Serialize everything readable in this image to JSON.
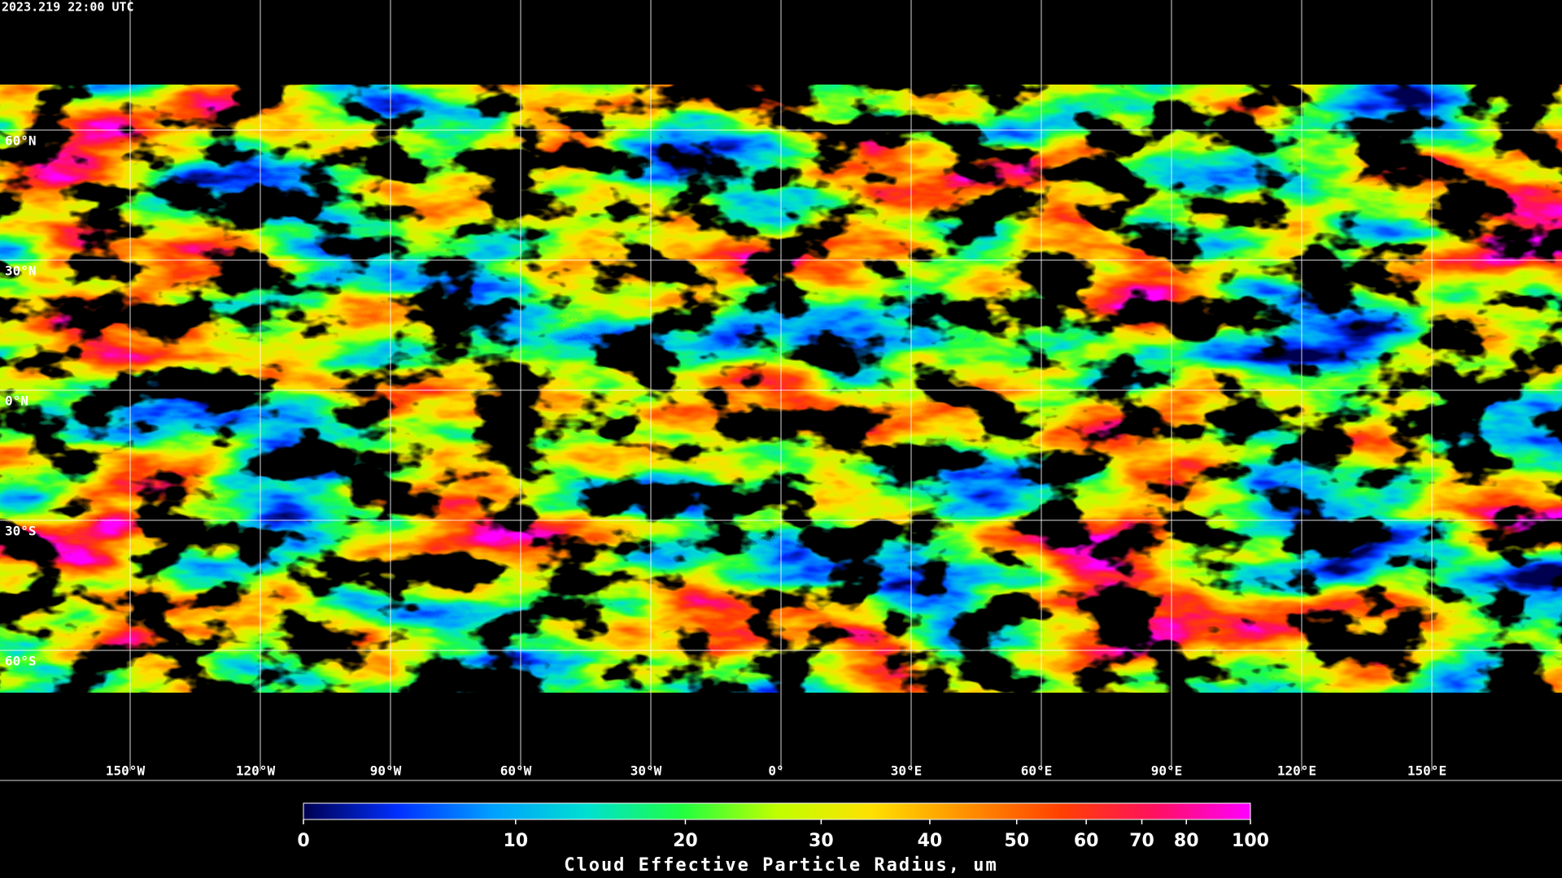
{
  "map": {
    "timestamp": "2023.219 22:00 UTC",
    "xlim": [
      -180,
      180
    ],
    "ylim": [
      -90,
      90
    ],
    "grid": true,
    "lon_ticks": [
      {
        "value": -150,
        "label": "150°W"
      },
      {
        "value": -120,
        "label": "120°W"
      },
      {
        "value": -90,
        "label": "90°W"
      },
      {
        "value": -60,
        "label": "60°W"
      },
      {
        "value": -30,
        "label": "30°W"
      },
      {
        "value": 0,
        "label": "0°"
      },
      {
        "value": 30,
        "label": "30°E"
      },
      {
        "value": 60,
        "label": "60°E"
      },
      {
        "value": 90,
        "label": "90°E"
      },
      {
        "value": 120,
        "label": "120°E"
      },
      {
        "value": 150,
        "label": "150°E"
      }
    ],
    "lat_ticks": [
      {
        "value": 60,
        "label": "60°N"
      },
      {
        "value": 30,
        "label": "30°N"
      },
      {
        "value": 0,
        "label": "0°N"
      },
      {
        "value": -30,
        "label": "30°S"
      },
      {
        "value": -60,
        "label": "60°S"
      }
    ]
  },
  "colorbar": {
    "label": "Cloud Effective Particle Radius, um",
    "lim": [
      0,
      100
    ],
    "ticks": [
      0,
      10,
      20,
      30,
      40,
      50,
      60,
      70,
      80,
      100
    ],
    "colors": [
      "#000050",
      "#0030ff",
      "#00a0ff",
      "#00e0d0",
      "#20ff40",
      "#c0ff00",
      "#ffe000",
      "#ff9000",
      "#ff4000",
      "#ff1060",
      "#ff00ff"
    ]
  }
}
